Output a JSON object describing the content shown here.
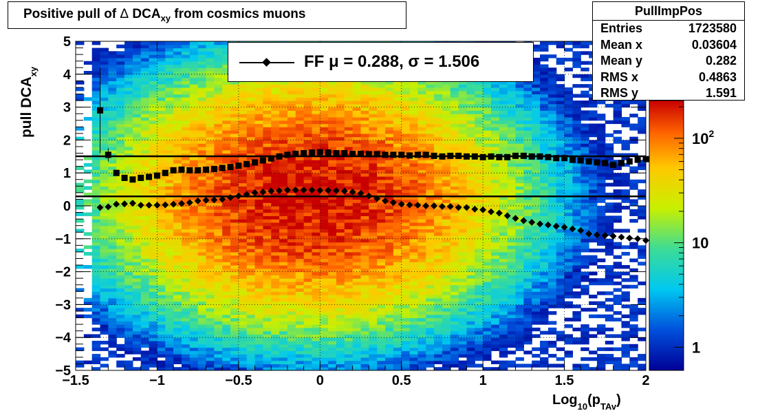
{
  "chart_data": {
    "type": "heatmap",
    "title_parts": [
      "Positive pull of ",
      "Δ",
      " DCA",
      "xy",
      " from cosmics muons"
    ],
    "xlabel_parts": [
      "Log",
      "10",
      "(p",
      "TAv",
      ")"
    ],
    "ylabel_parts": [
      "pull DCA",
      "xy"
    ],
    "xlim": [
      -1.5,
      2
    ],
    "ylim": [
      -5,
      5
    ],
    "x_ticks": [
      -1.5,
      -1,
      -0.5,
      0,
      0.5,
      1,
      1.5,
      2
    ],
    "x_tick_labels": [
      "−1.5",
      "−1",
      "−0.5",
      "0",
      "0.5",
      "1",
      "1.5",
      "2"
    ],
    "y_ticks": [
      -5,
      -4,
      -3,
      -2,
      -1,
      0,
      1,
      2,
      3,
      4,
      5
    ],
    "y_tick_labels": [
      "−5",
      "−4",
      "−3",
      "−2",
      "−1",
      "0",
      "1",
      "2",
      "3",
      "4",
      "5"
    ],
    "grid": true,
    "colorbar": {
      "scale": "log",
      "range": [
        0.6,
        230
      ],
      "ticks": [
        {
          "value": 1,
          "base": "1",
          "exp": ""
        },
        {
          "value": 10,
          "base": "10",
          "exp": ""
        },
        {
          "value": 100,
          "base": "10",
          "exp": "2"
        }
      ]
    },
    "density_model": {
      "peak_counts": 220,
      "center_x": -0.05,
      "center_y": 0.3,
      "sigma_x": 0.55,
      "sigma_y": 1.75
    },
    "fit_lines": [
      {
        "name": "σ",
        "y": 1.506
      },
      {
        "name": "μ",
        "y": 0.288
      }
    ],
    "series": [
      {
        "name": "sigma",
        "marker": "square",
        "x": [
          -1.35,
          -1.3,
          -1.25,
          -1.2,
          -1.15,
          -1.1,
          -1.05,
          -1.0,
          -0.95,
          -0.9,
          -0.85,
          -0.8,
          -0.75,
          -0.7,
          -0.65,
          -0.6,
          -0.55,
          -0.5,
          -0.45,
          -0.4,
          -0.35,
          -0.3,
          -0.25,
          -0.2,
          -0.15,
          -0.1,
          -0.05,
          0.0,
          0.05,
          0.1,
          0.15,
          0.2,
          0.25,
          0.3,
          0.35,
          0.4,
          0.45,
          0.5,
          0.55,
          0.6,
          0.65,
          0.7,
          0.75,
          0.8,
          0.85,
          0.9,
          0.95,
          1.0,
          1.05,
          1.1,
          1.15,
          1.2,
          1.25,
          1.3,
          1.35,
          1.4,
          1.45,
          1.5,
          1.55,
          1.6,
          1.65,
          1.7,
          1.75,
          1.8,
          1.85,
          1.9,
          1.95,
          2.0
        ],
        "y": [
          2.9,
          1.55,
          1.0,
          0.85,
          0.8,
          0.85,
          0.88,
          0.92,
          1.0,
          1.08,
          1.1,
          1.08,
          1.08,
          1.1,
          1.12,
          1.15,
          1.18,
          1.22,
          1.27,
          1.32,
          1.38,
          1.44,
          1.5,
          1.55,
          1.58,
          1.6,
          1.62,
          1.63,
          1.62,
          1.6,
          1.6,
          1.58,
          1.58,
          1.57,
          1.57,
          1.55,
          1.55,
          1.55,
          1.53,
          1.55,
          1.55,
          1.52,
          1.5,
          1.52,
          1.52,
          1.5,
          1.5,
          1.48,
          1.5,
          1.48,
          1.48,
          1.52,
          1.52,
          1.5,
          1.5,
          1.48,
          1.45,
          1.45,
          1.4,
          1.38,
          1.35,
          1.32,
          1.3,
          1.25,
          1.3,
          1.35,
          1.4,
          1.42
        ],
        "err": [
          1.3,
          0.2
        ]
      },
      {
        "name": "mu",
        "marker": "diamond",
        "x": [
          -1.35,
          -1.3,
          -1.25,
          -1.2,
          -1.15,
          -1.1,
          -1.05,
          -1.0,
          -0.95,
          -0.9,
          -0.85,
          -0.8,
          -0.75,
          -0.7,
          -0.65,
          -0.6,
          -0.55,
          -0.5,
          -0.45,
          -0.4,
          -0.35,
          -0.3,
          -0.25,
          -0.2,
          -0.15,
          -0.1,
          -0.05,
          0.0,
          0.05,
          0.1,
          0.15,
          0.2,
          0.25,
          0.3,
          0.35,
          0.4,
          0.45,
          0.5,
          0.55,
          0.6,
          0.65,
          0.7,
          0.75,
          0.8,
          0.85,
          0.9,
          0.95,
          1.0,
          1.05,
          1.1,
          1.15,
          1.2,
          1.25,
          1.3,
          1.35,
          1.4,
          1.45,
          1.5,
          1.55,
          1.6,
          1.65,
          1.7,
          1.75,
          1.8,
          1.85,
          1.9,
          1.95,
          2.0
        ],
        "y": [
          -0.05,
          -0.03,
          0.05,
          0.06,
          0.08,
          0.02,
          0.02,
          0.02,
          0.03,
          0.05,
          0.07,
          0.1,
          0.15,
          0.17,
          0.18,
          0.2,
          0.25,
          0.3,
          0.35,
          0.4,
          0.42,
          0.45,
          0.46,
          0.48,
          0.48,
          0.48,
          0.48,
          0.47,
          0.47,
          0.46,
          0.45,
          0.42,
          0.38,
          0.3,
          0.22,
          0.15,
          0.1,
          0.05,
          0.03,
          0.02,
          0.0,
          0.0,
          -0.02,
          -0.02,
          -0.05,
          -0.05,
          -0.1,
          -0.12,
          -0.18,
          -0.22,
          -0.3,
          -0.38,
          -0.45,
          -0.5,
          -0.55,
          -0.58,
          -0.62,
          -0.65,
          -0.7,
          -0.75,
          -0.85,
          -0.88,
          -0.9,
          -0.92,
          -0.95,
          -0.98,
          -1.0,
          -1.05
        ]
      }
    ],
    "legend": {
      "label_prefix": "FF μ =  0.288, σ =   1.506",
      "position": "top-center"
    },
    "stats": {
      "title": "PullImpPos",
      "rows": [
        {
          "label": "Entries",
          "value": "1723580"
        },
        {
          "label": "Mean x",
          "value": "0.03604"
        },
        {
          "label": "Mean y",
          "value": "0.282"
        },
        {
          "label": "RMS x",
          "value": "0.4863"
        },
        {
          "label": "RMS y",
          "value": "1.591"
        }
      ]
    }
  }
}
